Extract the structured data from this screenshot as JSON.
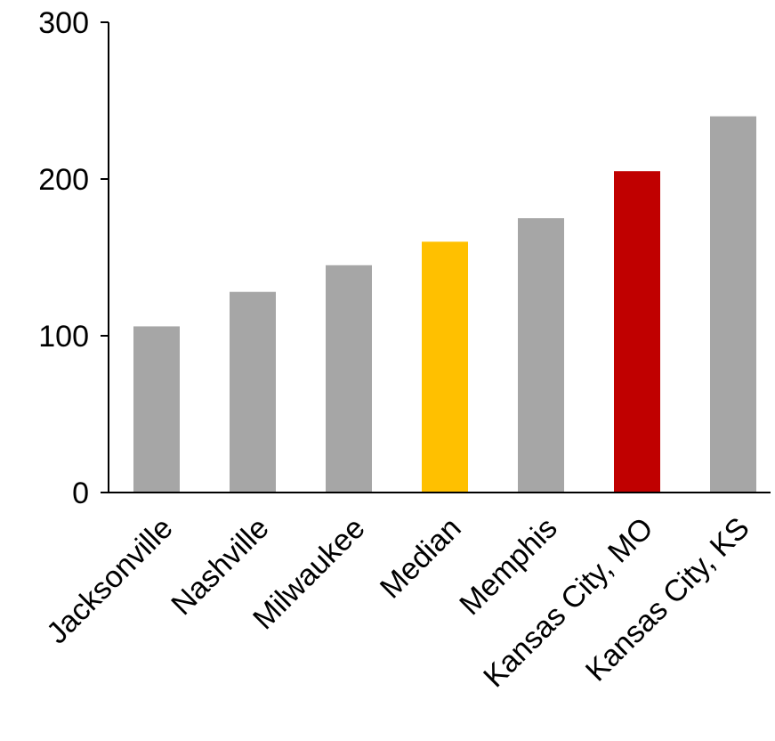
{
  "chart_data": {
    "type": "bar",
    "categories": [
      "Jacksonville",
      "Nashville",
      "Milwaukee",
      "Median",
      "Memphis",
      "Kansas City, MO",
      "Kansas City, KS"
    ],
    "values": [
      106,
      128,
      145,
      160,
      175,
      205,
      240
    ],
    "bar_colors": [
      "#a6a6a6",
      "#a6a6a6",
      "#a6a6a6",
      "#ffc000",
      "#a6a6a6",
      "#c00000",
      "#a6a6a6"
    ],
    "ylim": [
      0,
      300
    ],
    "yticks": [
      0,
      100,
      200,
      300
    ],
    "ytick_labels": [
      "0",
      "100",
      "200",
      "300"
    ],
    "title": "",
    "xlabel": "",
    "ylabel": "",
    "grid": false,
    "legend": "none"
  }
}
